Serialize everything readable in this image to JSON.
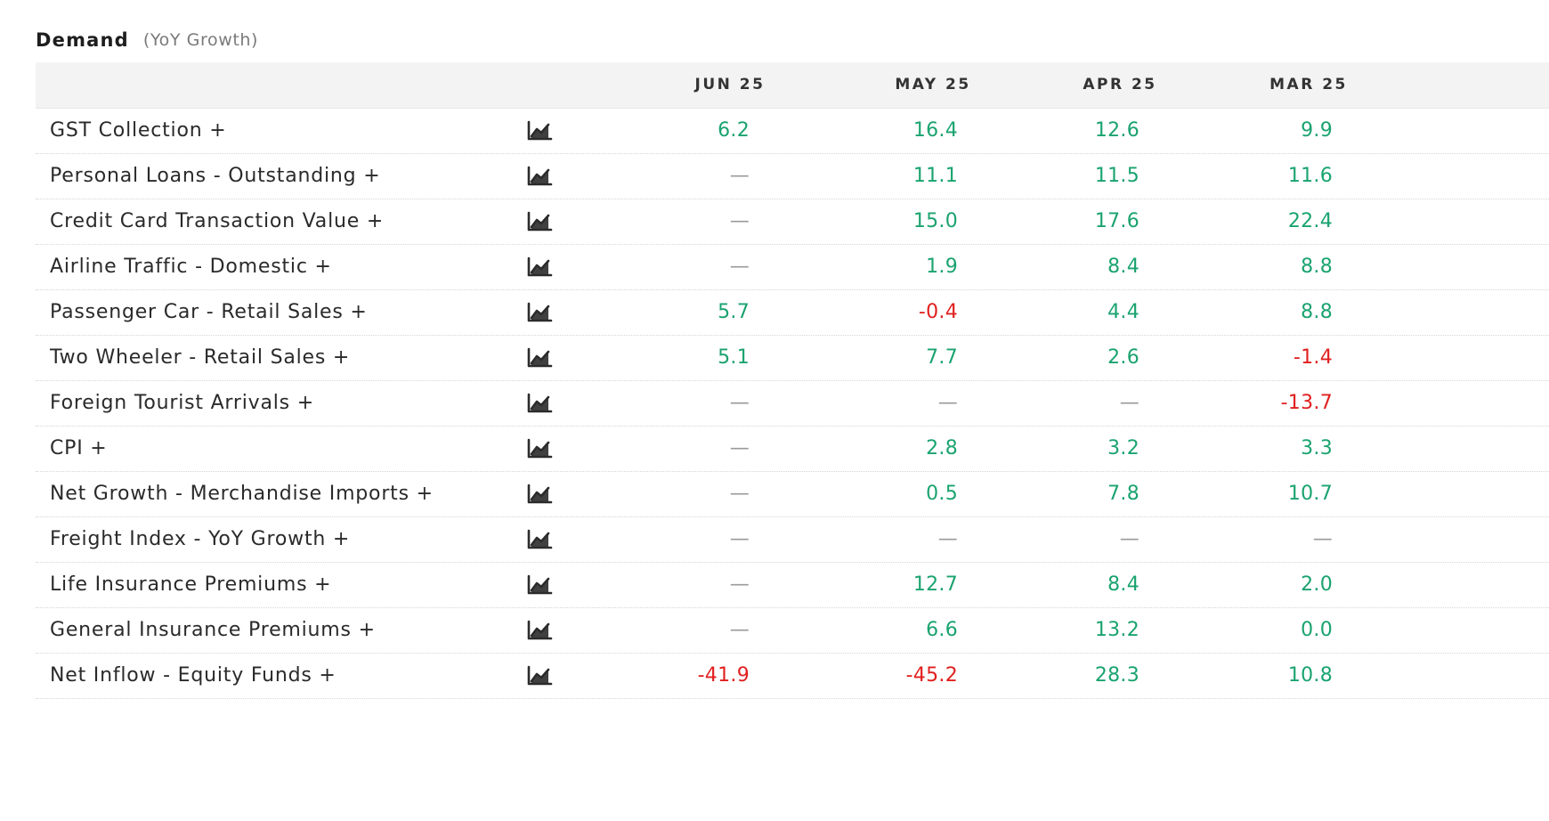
{
  "section": {
    "title": "Demand",
    "subtitle": "(YoY Growth)"
  },
  "columns": [
    "JUN 25",
    "MAY 25",
    "APR 25",
    "MAR 25"
  ],
  "icons": {
    "row_chart": "trend-chart-icon"
  },
  "colors": {
    "positive": "#1aa36f",
    "negative": "#e0201f",
    "missing": "#9a9a9a",
    "header_bg": "#f3f3f3"
  },
  "rows": [
    {
      "label": "GST Collection +",
      "values": [
        "6.2",
        "16.4",
        "12.6",
        "9.9"
      ]
    },
    {
      "label": "Personal Loans - Outstanding +",
      "values": [
        "—",
        "11.1",
        "11.5",
        "11.6"
      ]
    },
    {
      "label": "Credit Card Transaction Value +",
      "values": [
        "—",
        "15.0",
        "17.6",
        "22.4"
      ]
    },
    {
      "label": "Airline Traffic - Domestic +",
      "values": [
        "—",
        "1.9",
        "8.4",
        "8.8"
      ]
    },
    {
      "label": "Passenger Car - Retail Sales +",
      "values": [
        "5.7",
        "-0.4",
        "4.4",
        "8.8"
      ]
    },
    {
      "label": "Two Wheeler - Retail Sales +",
      "values": [
        "5.1",
        "7.7",
        "2.6",
        "-1.4"
      ]
    },
    {
      "label": "Foreign Tourist Arrivals +",
      "values": [
        "—",
        "—",
        "—",
        "-13.7"
      ]
    },
    {
      "label": "CPI +",
      "values": [
        "—",
        "2.8",
        "3.2",
        "3.3"
      ]
    },
    {
      "label": "Net Growth - Merchandise Imports +",
      "values": [
        "—",
        "0.5",
        "7.8",
        "10.7"
      ]
    },
    {
      "label": "Freight Index - YoY Growth +",
      "values": [
        "—",
        "—",
        "—",
        "—"
      ]
    },
    {
      "label": "Life Insurance Premiums +",
      "values": [
        "—",
        "12.7",
        "8.4",
        "2.0"
      ]
    },
    {
      "label": "General Insurance Premiums +",
      "values": [
        "—",
        "6.6",
        "13.2",
        "0.0"
      ]
    },
    {
      "label": "Net Inflow - Equity Funds +",
      "values": [
        "-41.9",
        "-45.2",
        "28.3",
        "10.8"
      ]
    }
  ]
}
